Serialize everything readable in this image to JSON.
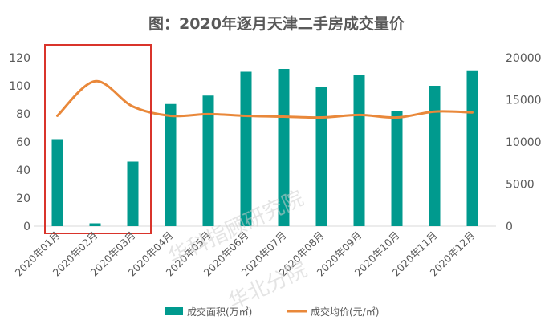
{
  "chart_data": {
    "type": "bar+line",
    "title": "图：2020年逐月天津二手房成交量价",
    "categories": [
      "2020年01月",
      "2020年02月",
      "2020年03月",
      "2020年04月",
      "2020年05月",
      "2020年06月",
      "2020年07月",
      "2020年08月",
      "2020年09月",
      "2020年10月",
      "2020年11月",
      "2020年12月"
    ],
    "series": [
      {
        "name": "成交面积(万㎡)",
        "type": "bar",
        "axis": "left",
        "color": "#009a8e",
        "values": [
          62,
          2,
          46,
          87,
          93,
          110,
          112,
          99,
          108,
          82,
          100,
          111
        ]
      },
      {
        "name": "成交均价(元/㎡)",
        "type": "line",
        "axis": "right",
        "color": "#e9883a",
        "values": [
          13100,
          17200,
          14200,
          13100,
          13300,
          13100,
          13000,
          12900,
          13200,
          12900,
          13600,
          13500
        ]
      }
    ],
    "ylim_left": [
      0,
      120
    ],
    "yticks_left": [
      "0",
      "20",
      "40",
      "60",
      "80",
      "100",
      "120"
    ],
    "ylim_right": [
      0,
      20000
    ],
    "yticks_right": [
      "0",
      "5000",
      "10000",
      "15000",
      "20000"
    ],
    "legend_position": "bottom",
    "highlight_box_categories": [
      "2020年01月",
      "2020年03月"
    ],
    "highlight_color": "#d9342b"
  },
  "watermark": {
    "line1": "华科指顾研究院",
    "line2": "华北分院"
  }
}
